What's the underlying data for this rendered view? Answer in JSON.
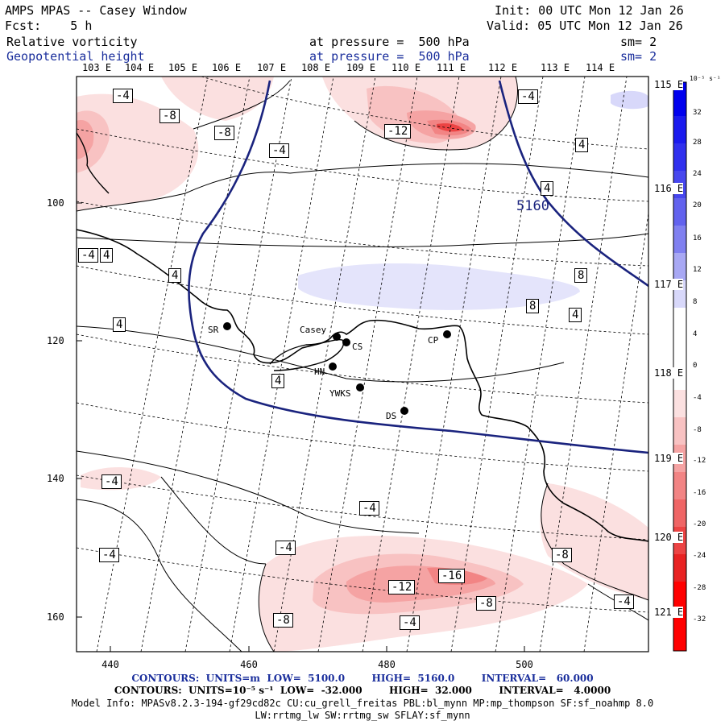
{
  "header": {
    "title": "AMPS MPAS -- Casey Window",
    "init": "Init: 00 UTC Mon 12 Jan 26",
    "forecast": "Fcst:    5 h",
    "valid": "Valid: 05 UTC Mon 12 Jan 26",
    "field1": "Relative vorticity",
    "field1_pressure": "at pressure =  500 hPa",
    "field1_sm": "sm= 2",
    "field2": "Geopotential height",
    "field2_pressure": "at pressure =  500 hPa",
    "field2_sm": "sm= 2"
  },
  "lon_labels": [
    "103 E",
    "104 E",
    "105 E",
    "106 E",
    "107 E",
    "108 E",
    "109 E",
    "110 E",
    "111 E",
    "112 E",
    "113 E",
    "114 E"
  ],
  "right_labels": [
    "115 E",
    "116 E",
    "117 E",
    "118 E",
    "119 E",
    "120 E",
    "121 E"
  ],
  "y_axis": [
    "100",
    "120",
    "140",
    "160"
  ],
  "x_axis": [
    "440",
    "460",
    "480",
    "500"
  ],
  "stations": [
    {
      "name": "SR"
    },
    {
      "name": "Casey"
    },
    {
      "name": "CS"
    },
    {
      "name": "CP"
    },
    {
      "name": "HN"
    },
    {
      "name": "YWKS"
    },
    {
      "name": "DS"
    }
  ],
  "height_contour_label": "5160",
  "vort_labels": [
    "-4",
    "-8",
    "-8",
    "-4",
    "-12",
    "-4",
    "4",
    "4",
    "-4",
    "4",
    "4",
    "4",
    "8",
    "8",
    "4",
    "4",
    "-4",
    "-4",
    "-4",
    "-4",
    "-8",
    "-12",
    "-16",
    "-8",
    "-4",
    "-8",
    "-4"
  ],
  "colorbar": {
    "unit": "10⁻⁵ s⁻¹",
    "ticks": [
      "32",
      "28",
      "24",
      "20",
      "16",
      "12",
      "8",
      "4",
      "0",
      "-4",
      "-8",
      "-12",
      "-16",
      "-20",
      "-24",
      "-28",
      "-32"
    ],
    "colors": [
      "#0000ee",
      "#1a1aee",
      "#3030ee",
      "#4747ee",
      "#6262ee",
      "#8080f0",
      "#a8a8f4",
      "#d8d8fa",
      "#ffffff",
      "#ffffff",
      "#fbe0e0",
      "#f8c2c2",
      "#f5a3a3",
      "#f28484",
      "#ef6565",
      "#ec4444",
      "#e82222",
      "#ff0000"
    ]
  },
  "footer": {
    "line1": "CONTOURS:  UNITS=m  LOW=  5100.0        HIGH=  5160.0        INTERVAL=   60.000",
    "line2": "CONTOURS:  UNITS=10⁻⁵ s⁻¹  LOW=  -32.000        HIGH=  32.000        INTERVAL=   4.0000",
    "line3": "Model Info: MPASv8.2.3-194-gf29cd82c CU:cu_grell_freitas PBL:bl_mynn MP:mp_thompson SF:sf_noahmp 8.0",
    "line4": "LW:rrtmg_lw SW:rrtmg_sw SFLAY:sf_mynn"
  }
}
